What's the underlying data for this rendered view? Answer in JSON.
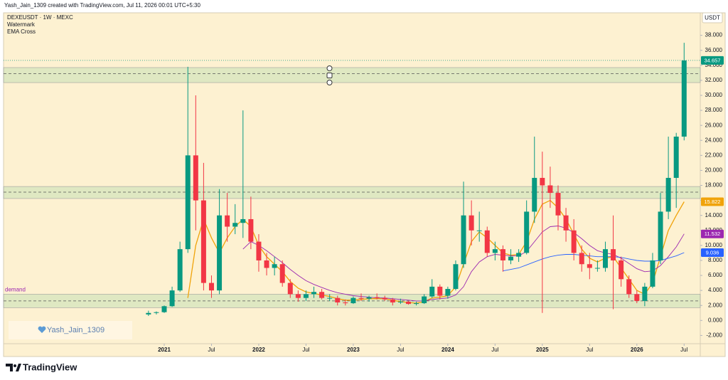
{
  "header": "Yash_Jain_1309 created with TradingView.com, Jul 11, 2026 00:01 UTC+5:30",
  "brand": "TradingView",
  "chart_data": {
    "type": "candlestick",
    "title": "DEXEUSDT · 1W · MEXC",
    "indicators": [
      "Watermark",
      "EMA Cross"
    ],
    "currency": "USDT",
    "watermark": "Yash_Jain_1309",
    "up_color": "#089981",
    "down_color": "#f23645",
    "x": [
      "2020-11",
      "2020-12",
      "2021-01",
      "2021-02",
      "2021-03",
      "2021-04",
      "2021-05",
      "2021-06",
      "2021-07",
      "2021-08",
      "2021-09",
      "2021-10",
      "2021-11",
      "2021-12",
      "2022-01",
      "2022-02",
      "2022-03",
      "2022-04",
      "2022-05",
      "2022-06",
      "2022-07",
      "2022-08",
      "2022-09",
      "2022-10",
      "2022-11",
      "2022-12",
      "2023-01",
      "2023-02",
      "2023-03",
      "2023-04",
      "2023-05",
      "2023-06",
      "2023-07",
      "2023-08",
      "2023-09",
      "2023-10",
      "2023-11",
      "2023-12",
      "2024-01",
      "2024-02",
      "2024-03",
      "2024-04",
      "2024-05",
      "2024-06",
      "2024-07",
      "2024-08",
      "2024-09",
      "2024-10",
      "2024-11",
      "2024-12",
      "2025-01",
      "2025-02",
      "2025-03",
      "2025-04",
      "2025-05",
      "2025-06",
      "2025-07",
      "2025-08",
      "2025-09",
      "2025-10",
      "2025-11",
      "2025-12",
      "2026-01",
      "2026-02",
      "2026-03",
      "2026-04",
      "2026-05",
      "2026-06",
      "2026-07"
    ],
    "open": [
      0.8,
      1.0,
      1.1,
      1.9,
      4.0,
      9.5,
      22,
      16,
      5,
      4,
      14,
      12.5,
      13,
      13.5,
      10.5,
      8,
      7,
      7.5,
      5,
      3.5,
      3,
      3.5,
      3.8,
      3,
      3,
      2.4,
      2.3,
      3,
      2.9,
      3.1,
      3,
      2.8,
      2.4,
      2.5,
      2.2,
      2.3,
      3.2,
      4.5,
      3.3,
      4.2,
      7.5,
      14,
      12,
      12,
      9,
      9.5,
      8,
      8.5,
      9,
      14.5,
      19,
      18,
      17,
      14,
      12,
      9,
      7.5,
      7,
      7,
      9.5,
      8,
      5.5,
      3.5,
      2.6,
      4.5,
      8,
      14.5,
      19,
      24.5
    ],
    "high": [
      1.3,
      1.2,
      2.0,
      4.5,
      10.5,
      33.8,
      30,
      21,
      6,
      17.5,
      17,
      15.5,
      28,
      16.5,
      11.5,
      9,
      8.5,
      8,
      5.5,
      4,
      4,
      4.5,
      4.2,
      3.5,
      3.3,
      2.8,
      3.2,
      3.6,
      3.3,
      3.6,
      3.3,
      3,
      2.9,
      2.6,
      2.5,
      3.5,
      5.5,
      4.8,
      4.5,
      8,
      18.5,
      16,
      14.5,
      12.5,
      10.5,
      10,
      9.5,
      9.5,
      16,
      24.5,
      22.5,
      20.5,
      18,
      15,
      13.5,
      10,
      9,
      8,
      10.5,
      14,
      8.5,
      6,
      4,
      5,
      9,
      17,
      24.5,
      25,
      37
    ],
    "low": [
      0.6,
      0.8,
      1.0,
      1.8,
      3.8,
      9.0,
      12,
      4,
      3,
      3.5,
      10.5,
      11.5,
      11,
      9.5,
      6.5,
      6,
      6,
      4.5,
      3,
      2.5,
      2.6,
      3,
      2.8,
      2.6,
      2,
      2,
      2.2,
      2.6,
      2.5,
      2.8,
      2.6,
      2,
      2.2,
      2.1,
      2,
      2.2,
      3,
      2.8,
      2.9,
      4,
      7,
      10,
      10.5,
      8.5,
      8,
      6.5,
      7.5,
      7.8,
      8.8,
      13,
      1,
      15,
      12,
      10.5,
      8,
      6.5,
      5.5,
      6.5,
      6.5,
      1.5,
      4.5,
      3,
      2.3,
      1.9,
      4.3,
      7.5,
      13.5,
      15,
      24
    ],
    "close": [
      1.0,
      1.1,
      1.9,
      4.0,
      9.5,
      22,
      16,
      5,
      4,
      14,
      12.5,
      13,
      13.5,
      10.5,
      8,
      7,
      7.5,
      5,
      3.5,
      3,
      3.5,
      3.8,
      3,
      3,
      2.4,
      2.3,
      3,
      2.9,
      3.1,
      3,
      2.8,
      2.4,
      2.5,
      2.2,
      2.3,
      3.2,
      4.5,
      3.3,
      4.2,
      7.5,
      14,
      12,
      12,
      9,
      9.5,
      8,
      8.5,
      9,
      14.5,
      19,
      18,
      17,
      14,
      12,
      9,
      7.5,
      7,
      7,
      9.5,
      8,
      5.5,
      3.5,
      2.6,
      4.5,
      8,
      14.5,
      19,
      24.5,
      34.657
    ],
    "series": [
      {
        "color": "#f0a30a",
        "values": [
          null,
          null,
          null,
          null,
          null,
          3,
          10,
          13.5,
          11,
          9,
          11,
          12.5,
          13.5,
          12.5,
          10,
          8.5,
          7.5,
          6.5,
          5.2,
          4.3,
          3.8,
          3.6,
          3.4,
          3.2,
          2.9,
          2.7,
          2.7,
          2.8,
          2.9,
          2.9,
          2.9,
          2.7,
          2.5,
          2.4,
          2.3,
          2.5,
          3.0,
          3.1,
          3.3,
          4.5,
          7.5,
          10.5,
          11.8,
          11.0,
          10.0,
          9.0,
          8.7,
          8.8,
          10.5,
          13.5,
          15.5,
          16.0,
          15.0,
          13.5,
          11.5,
          9.5,
          8.3,
          7.8,
          8.3,
          8.5,
          7.0,
          5.5,
          4.0,
          3.5,
          5.0,
          8.5,
          12.0,
          14.0,
          15.822
        ]
      },
      {
        "color": "#9c27b0",
        "values": [
          null,
          null,
          null,
          null,
          null,
          null,
          null,
          null,
          null,
          null,
          null,
          null,
          9.5,
          10.5,
          10.0,
          9.3,
          8.5,
          7.7,
          6.8,
          6.0,
          5.3,
          4.8,
          4.4,
          4.0,
          3.7,
          3.5,
          3.3,
          3.2,
          3.1,
          3.0,
          3.0,
          2.9,
          2.8,
          2.7,
          2.6,
          2.6,
          2.8,
          2.9,
          3.0,
          3.4,
          4.5,
          6.5,
          7.8,
          8.5,
          8.8,
          8.7,
          8.6,
          8.6,
          9.2,
          10.5,
          11.8,
          12.5,
          12.6,
          12.3,
          11.7,
          10.9,
          10.0,
          9.3,
          9.0,
          8.8,
          8.3,
          7.6,
          6.9,
          6.5,
          6.6,
          7.3,
          8.5,
          9.8,
          11.532
        ]
      },
      {
        "color": "#2962ff",
        "values": [
          null,
          null,
          null,
          null,
          null,
          null,
          null,
          null,
          null,
          null,
          null,
          null,
          null,
          null,
          null,
          null,
          null,
          null,
          null,
          null,
          null,
          null,
          null,
          null,
          null,
          null,
          null,
          null,
          null,
          null,
          null,
          null,
          null,
          null,
          null,
          null,
          null,
          null,
          null,
          null,
          null,
          null,
          null,
          null,
          null,
          6.6,
          6.8,
          7.0,
          7.4,
          7.8,
          8.2,
          8.5,
          8.7,
          8.8,
          8.8,
          8.7,
          8.6,
          8.5,
          8.5,
          8.5,
          8.4,
          8.2,
          8.0,
          7.9,
          7.9,
          8.0,
          8.3,
          8.6,
          9.036
        ]
      }
    ],
    "zones": [
      {
        "top": 33.7,
        "bottom": 31.7,
        "level": 32.9
      },
      {
        "top": 17.85,
        "bottom": 16.25,
        "level": 17.1
      },
      {
        "top": 3.5,
        "bottom": 1.7,
        "level": 2.6,
        "label": "demand"
      }
    ],
    "ylim": [
      -3.1,
      41.0
    ],
    "yticks": [
      {
        "value": -2,
        "label": "-2.000"
      },
      {
        "value": 0,
        "label": "0.000"
      },
      {
        "value": 2,
        "label": "2.000"
      },
      {
        "value": 4,
        "label": "4.000"
      },
      {
        "value": 6,
        "label": "6.000"
      },
      {
        "value": 8,
        "label": "8.000"
      },
      {
        "value": 10,
        "label": "10.000"
      },
      {
        "value": 12,
        "label": "12.000"
      },
      {
        "value": 14,
        "label": "14.000"
      },
      {
        "value": 16,
        "label": "16.000"
      },
      {
        "value": 18,
        "label": "18.000"
      },
      {
        "value": 20,
        "label": "20.000"
      },
      {
        "value": 22,
        "label": "22.000"
      },
      {
        "value": 24,
        "label": "24.000"
      },
      {
        "value": 26,
        "label": "26.000"
      },
      {
        "value": 28,
        "label": "28.000"
      },
      {
        "value": 30,
        "label": "30.000"
      },
      {
        "value": 32,
        "label": "32.000"
      },
      {
        "value": 34,
        "label": "34.000"
      },
      {
        "value": 36,
        "label": "36.000"
      },
      {
        "value": 38,
        "label": "38.000"
      }
    ],
    "xticks": [
      {
        "value": "2021-01",
        "label": "2021"
      },
      {
        "value": "2021-07",
        "label": "Jul"
      },
      {
        "value": "2022-01",
        "label": "2022"
      },
      {
        "value": "2022-07",
        "label": "Jul"
      },
      {
        "value": "2023-01",
        "label": "2023"
      },
      {
        "value": "2023-07",
        "label": "Jul"
      },
      {
        "value": "2024-01",
        "label": "2024"
      },
      {
        "value": "2024-07",
        "label": "Jul"
      },
      {
        "value": "2025-01",
        "label": "2025"
      },
      {
        "value": "2025-07",
        "label": "Jul"
      },
      {
        "value": "2026-01",
        "label": "2026"
      },
      {
        "value": "2026-07",
        "label": "Jul"
      }
    ]
  }
}
